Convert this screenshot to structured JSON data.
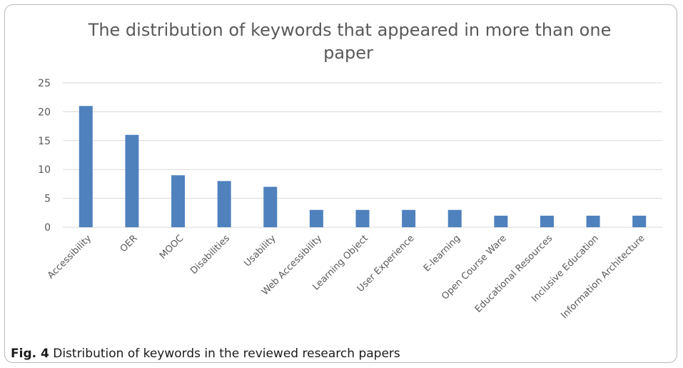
{
  "chart_data": {
    "type": "bar",
    "title": "The distribution of keywords that appeared in more than one paper",
    "title_lines": [
      "The distribution of keywords that appeared in more than one",
      "paper"
    ],
    "categories": [
      "Accessibility",
      "OER",
      "MOOC",
      "Disabilities",
      "Usability",
      "Web Accessibility",
      "Learning Object",
      "User Experience",
      "E-learning",
      "Open Course Ware",
      "Educational Resources",
      "Inclusive Education",
      "Information Architecture"
    ],
    "values": [
      21,
      16,
      9,
      8,
      7,
      3,
      3,
      3,
      3,
      2,
      2,
      2,
      2
    ],
    "ylim": [
      0,
      25
    ],
    "yticks": [
      "0",
      "5",
      "10",
      "15",
      "20",
      "25"
    ],
    "grid": true,
    "legend": "none",
    "bar_color": "#4f81bd",
    "grid_color": "#d9d9d9"
  },
  "caption": {
    "label": "Fig. 4",
    "text": "Distribution of keywords in the reviewed research papers"
  }
}
